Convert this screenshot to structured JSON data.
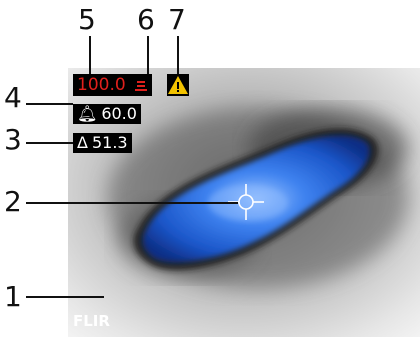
{
  "callouts": {
    "n1": "1",
    "n2": "2",
    "n3": "3",
    "n4": "4",
    "n5": "5",
    "n6": "6",
    "n7": "7"
  },
  "readouts": {
    "temperature": "100.0",
    "alarm_value": "60.0",
    "delta_value": "51.3"
  },
  "icons": {
    "alarm": "alarm-bell-icon",
    "delta": "delta-icon",
    "thermometer": "thermometer-icon",
    "warning": "warning-triangle-icon",
    "crosshair": "crosshair-icon"
  },
  "colors": {
    "temperature_text": "#e0201c",
    "warning": "#f2c200",
    "hotspot": "#1f5fd6"
  },
  "logo": {
    "text": "FLIR"
  }
}
